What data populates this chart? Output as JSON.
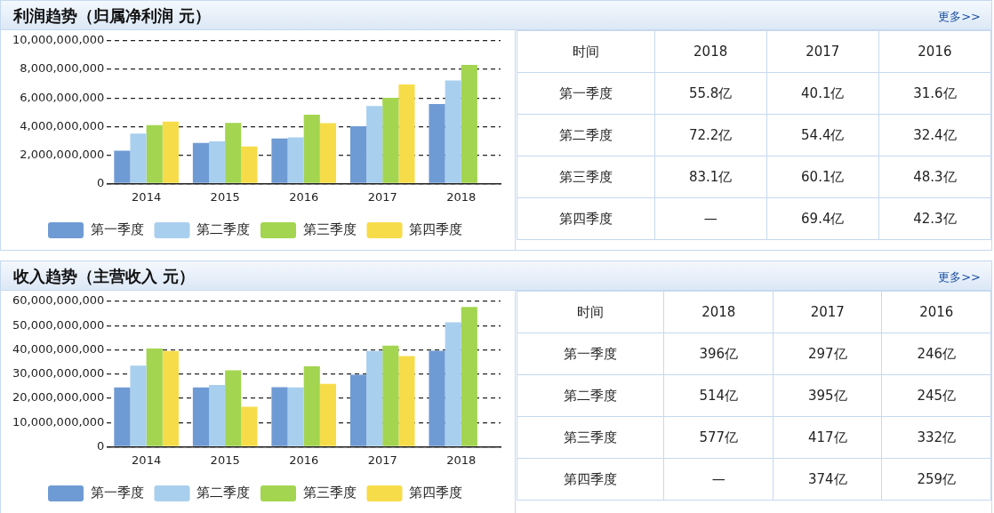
{
  "chart_data": [
    {
      "type": "bar",
      "title": "利润趋势（归属净利润 元）",
      "categories": [
        "2014",
        "2015",
        "2016",
        "2017",
        "2018"
      ],
      "series": [
        {
          "name": "第一季度",
          "color": "#6f9bd4",
          "values": [
            2300000000,
            2850000000,
            3160000000,
            4010000000,
            5580000000
          ]
        },
        {
          "name": "第二季度",
          "color": "#a9cfee",
          "values": [
            3500000000,
            2950000000,
            3240000000,
            5440000000,
            7220000000
          ]
        },
        {
          "name": "第三季度",
          "color": "#a3d550",
          "values": [
            4100000000,
            4250000000,
            4830000000,
            6010000000,
            8310000000
          ]
        },
        {
          "name": "第四季度",
          "color": "#f7dc4a",
          "values": [
            4350000000,
            2600000000,
            4230000000,
            6940000000,
            null
          ]
        }
      ],
      "ylim": [
        0,
        10000000000
      ],
      "yticks": [
        0,
        {
          "value": 2000000000,
          "label": "2,000,000,000"
        },
        {
          "value": 4000000000,
          "label": "4,000,000,000"
        },
        {
          "value": 6000000000,
          "label": "6,000,000,000"
        },
        {
          "value": 8000000000,
          "label": "8,000,000,000"
        },
        {
          "value": 10000000000,
          "label": "10,000,000,000"
        }
      ],
      "grid": "y",
      "legend": "bottom"
    },
    {
      "type": "other",
      "ylabel": "时间",
      "categories": [
        "2018",
        "2017",
        "2016"
      ],
      "y_categories": [
        "第一季度",
        "第二季度",
        "第三季度",
        "第四季度"
      ],
      "cell_labels": [
        [
          "55.8亿",
          "40.1亿",
          "31.6亿"
        ],
        [
          "72.2亿",
          "54.4亿",
          "32.4亿"
        ],
        [
          "83.1亿",
          "60.1亿",
          "48.3亿"
        ],
        [
          "—",
          "69.4亿",
          "42.3亿"
        ]
      ],
      "annotations": [
        "更多>>"
      ]
    },
    {
      "type": "bar",
      "title": "收入趋势（主营收入 元）",
      "categories": [
        "2014",
        "2015",
        "2016",
        "2017",
        "2018"
      ],
      "series": [
        {
          "name": "第一季度",
          "color": "#6f9bd4",
          "values": [
            24500000000,
            24500000000,
            24600000000,
            29700000000,
            39600000000
          ]
        },
        {
          "name": "第二季度",
          "color": "#a9cfee",
          "values": [
            33500000000,
            25500000000,
            24500000000,
            39500000000,
            51400000000
          ]
        },
        {
          "name": "第三季度",
          "color": "#a3d550",
          "values": [
            40500000000,
            31500000000,
            33200000000,
            41700000000,
            57700000000
          ]
        },
        {
          "name": "第四季度",
          "color": "#f7dc4a",
          "values": [
            39500000000,
            16500000000,
            25900000000,
            37400000000,
            null
          ]
        }
      ],
      "ylim": [
        0,
        60000000000
      ],
      "yticks": [
        0,
        {
          "value": 10000000000,
          "label": "10,000,000,000"
        },
        {
          "value": 20000000000,
          "label": "20,000,000,000"
        },
        {
          "value": 30000000000,
          "label": "30,000,000,000"
        },
        {
          "value": 40000000000,
          "label": "40,000,000,000"
        },
        {
          "value": 50000000000,
          "label": "50,000,000,000"
        },
        {
          "value": 60000000000,
          "label": "60,000,000,000"
        }
      ],
      "grid": "y",
      "legend": "bottom"
    },
    {
      "type": "other",
      "ylabel": "时间",
      "categories": [
        "2018",
        "2017",
        "2016"
      ],
      "y_categories": [
        "第一季度",
        "第二季度",
        "第三季度",
        "第四季度"
      ],
      "cell_labels": [
        [
          "396亿",
          "297亿",
          "246亿"
        ],
        [
          "514亿",
          "395亿",
          "245亿"
        ],
        [
          "577亿",
          "417亿",
          "332亿"
        ],
        [
          "—",
          "374亿",
          "259亿"
        ]
      ],
      "annotations": [
        "更多>>"
      ]
    }
  ]
}
